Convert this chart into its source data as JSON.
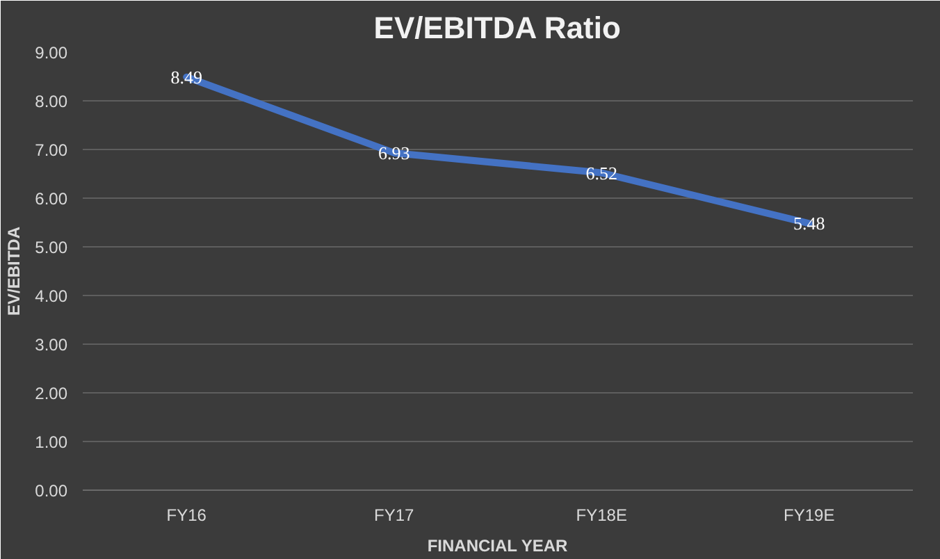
{
  "chart_data": {
    "type": "line",
    "title": "EV/EBITDA Ratio",
    "xlabel": "FINANCIAL YEAR",
    "ylabel": "EV/EBITDA",
    "categories": [
      "FY16",
      "FY17",
      "FY18E",
      "FY19E"
    ],
    "series": [
      {
        "color": "#4472c4",
        "values": [
          8.49,
          6.93,
          6.52,
          5.48
        ]
      }
    ],
    "ylim": [
      0,
      9
    ],
    "yticks": [
      {
        "value": 0,
        "label": "0.00"
      },
      {
        "value": 1,
        "label": "1.00"
      },
      {
        "value": 2,
        "label": "2.00"
      },
      {
        "value": 3,
        "label": "3.00"
      },
      {
        "value": 4,
        "label": "4.00"
      },
      {
        "value": 5,
        "label": "5.00"
      },
      {
        "value": 6,
        "label": "6.00"
      },
      {
        "value": 7,
        "label": "7.00"
      },
      {
        "value": 8,
        "label": "8.00"
      },
      {
        "value": 9,
        "label": "9.00"
      }
    ],
    "grid": "y",
    "data_labels": true
  }
}
